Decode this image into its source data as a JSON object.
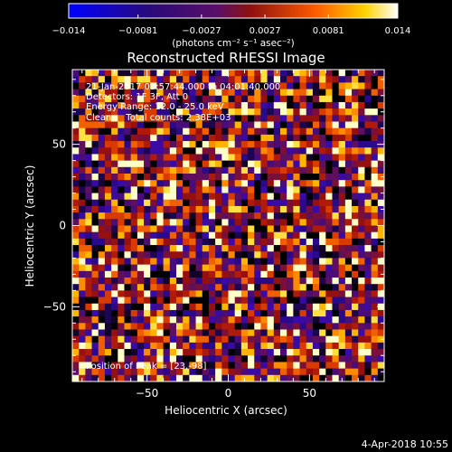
{
  "chart_data": {
    "type": "heatmap",
    "title": "Reconstructed RHESSI Image",
    "colorbar": {
      "tick_labels": [
        "−0.014",
        "−0.0081",
        "−0.0027",
        "0.0027",
        "0.0081",
        "0.014"
      ],
      "tick_values": [
        -0.014,
        -0.0081,
        -0.0027,
        0.0027,
        0.0081,
        0.014
      ],
      "range": [
        -0.014,
        0.014
      ],
      "units_text": "(photons cm⁻² s⁻¹ asec⁻²)"
    },
    "xlabel": "Heliocentric X (arcsec)",
    "ylabel": "Heliocentric Y (arcsec)",
    "xlim": [
      -96,
      96
    ],
    "ylim": [
      -96,
      96
    ],
    "x_ticks": [
      -50,
      0,
      50
    ],
    "x_tick_labels": [
      "−50",
      "0",
      "50"
    ],
    "y_ticks": [
      -50,
      0,
      50
    ],
    "y_tick_labels": [
      "−50",
      "0",
      "50"
    ],
    "grid": false,
    "grid_size": [
      48,
      48
    ],
    "annotations": [
      "21-Jan-2017 03:57:44.000 to 04:01:40.000",
      "Detectors: 1F 3F, Att 0",
      "Energy Range: 12.0 - 25.0 keV",
      "Clean     Total counts: 2.38E+03",
      "Position of Peak = [23,-98]"
    ],
    "footer_date": "4-Apr-2018 10:55"
  }
}
